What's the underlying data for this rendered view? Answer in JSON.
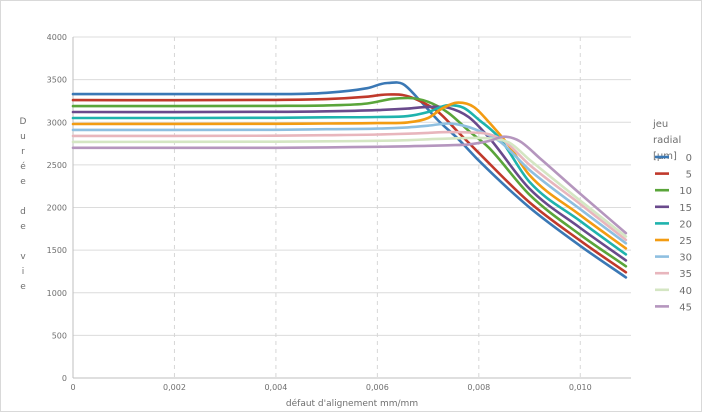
{
  "chart_data": {
    "type": "line",
    "xlabel": "défaut d'alignement mm/mm",
    "ylabel": "Durée de vie",
    "xlim": [
      0,
      0.011
    ],
    "ylim": [
      0,
      4000
    ],
    "x_ticks": [
      0,
      0.002,
      0.004,
      0.006,
      0.008,
      0.01
    ],
    "x_tick_labels": [
      "0",
      "0,002",
      "0,004",
      "0,006",
      "0,008",
      "0,010"
    ],
    "y_ticks": [
      0,
      500,
      1000,
      1500,
      2000,
      2500,
      3000,
      3500,
      4000
    ],
    "y_tick_labels": [
      "0",
      "500",
      "1000",
      "1500",
      "2000",
      "2500",
      "3000",
      "3500",
      "4000"
    ],
    "grid": {
      "y": "solid",
      "x": "dashed"
    },
    "legend": {
      "title": "jeu radial [µm]",
      "title_lines": [
        "jeu",
        "radial",
        "[µm]"
      ],
      "placement": "right"
    },
    "series": [
      {
        "name": "0",
        "color": "#3a78b5",
        "x": [
          0,
          0.004,
          0.005,
          0.0058,
          0.0062,
          0.0065,
          0.0068,
          0.0072,
          0.0076,
          0.008,
          0.009,
          0.01,
          0.0109
        ],
        "y": [
          3330,
          3330,
          3345,
          3400,
          3460,
          3450,
          3280,
          3020,
          2800,
          2550,
          2000,
          1550,
          1180
        ]
      },
      {
        "name": "5",
        "color": "#c0392b",
        "x": [
          0,
          0.004,
          0.005,
          0.0058,
          0.0062,
          0.0065,
          0.0068,
          0.0072,
          0.0076,
          0.008,
          0.009,
          0.01,
          0.0109
        ],
        "y": [
          3260,
          3262,
          3272,
          3300,
          3325,
          3320,
          3260,
          3120,
          2880,
          2640,
          2060,
          1610,
          1240
        ]
      },
      {
        "name": "10",
        "color": "#5aa53a",
        "x": [
          0,
          0.004,
          0.005,
          0.0058,
          0.0063,
          0.0066,
          0.007,
          0.0074,
          0.0078,
          0.0082,
          0.009,
          0.01,
          0.0109
        ],
        "y": [
          3190,
          3192,
          3198,
          3220,
          3275,
          3285,
          3240,
          3110,
          2900,
          2700,
          2150,
          1680,
          1310
        ]
      },
      {
        "name": "15",
        "color": "#6a4a8c",
        "x": [
          0,
          0.004,
          0.005,
          0.006,
          0.0066,
          0.007,
          0.0074,
          0.0078,
          0.0082,
          0.009,
          0.01,
          0.0109
        ],
        "y": [
          3120,
          3122,
          3128,
          3142,
          3160,
          3180,
          3170,
          3060,
          2820,
          2220,
          1760,
          1380
        ]
      },
      {
        "name": "20",
        "color": "#1fb3ad",
        "x": [
          0,
          0.004,
          0.005,
          0.006,
          0.0066,
          0.007,
          0.0074,
          0.0077,
          0.008,
          0.0084,
          0.009,
          0.01,
          0.0109
        ],
        "y": [
          3050,
          3052,
          3058,
          3062,
          3072,
          3120,
          3200,
          3170,
          3030,
          2820,
          2300,
          1840,
          1450
        ]
      },
      {
        "name": "25",
        "color": "#f39c12",
        "x": [
          0,
          0.004,
          0.005,
          0.006,
          0.0066,
          0.007,
          0.0073,
          0.0076,
          0.0079,
          0.0082,
          0.0086,
          0.009,
          0.01,
          0.0109
        ],
        "y": [
          2980,
          2982,
          2985,
          2990,
          2998,
          3050,
          3170,
          3230,
          3180,
          3000,
          2720,
          2380,
          1910,
          1520
        ]
      },
      {
        "name": "30",
        "color": "#8ebfe0",
        "x": [
          0,
          0.004,
          0.005,
          0.006,
          0.0066,
          0.007,
          0.0074,
          0.0077,
          0.008,
          0.0084,
          0.009,
          0.01,
          0.0109
        ],
        "y": [
          2910,
          2912,
          2918,
          2925,
          2940,
          2960,
          2985,
          2960,
          2900,
          2780,
          2440,
          1980,
          1580
        ]
      },
      {
        "name": "35",
        "color": "#e8b6bd",
        "x": [
          0,
          0.004,
          0.005,
          0.006,
          0.0066,
          0.007,
          0.0074,
          0.0078,
          0.0082,
          0.0085,
          0.009,
          0.01,
          0.0109
        ],
        "y": [
          2840,
          2842,
          2848,
          2856,
          2866,
          2875,
          2885,
          2880,
          2860,
          2780,
          2500,
          2040,
          1620
        ]
      },
      {
        "name": "40",
        "color": "#d4e6c3",
        "x": [
          0,
          0.004,
          0.005,
          0.006,
          0.0066,
          0.007,
          0.0074,
          0.0078,
          0.0082,
          0.0086,
          0.009,
          0.01,
          0.0109
        ],
        "y": [
          2770,
          2772,
          2776,
          2782,
          2790,
          2800,
          2808,
          2815,
          2810,
          2760,
          2560,
          2080,
          1660
        ]
      },
      {
        "name": "45",
        "color": "#b596be",
        "x": [
          0,
          0.004,
          0.005,
          0.006,
          0.0066,
          0.007,
          0.0074,
          0.0078,
          0.0082,
          0.0085,
          0.0088,
          0.0092,
          0.01,
          0.0109
        ],
        "y": [
          2700,
          2700,
          2705,
          2712,
          2718,
          2724,
          2730,
          2740,
          2780,
          2830,
          2780,
          2580,
          2160,
          1700
        ]
      }
    ]
  }
}
